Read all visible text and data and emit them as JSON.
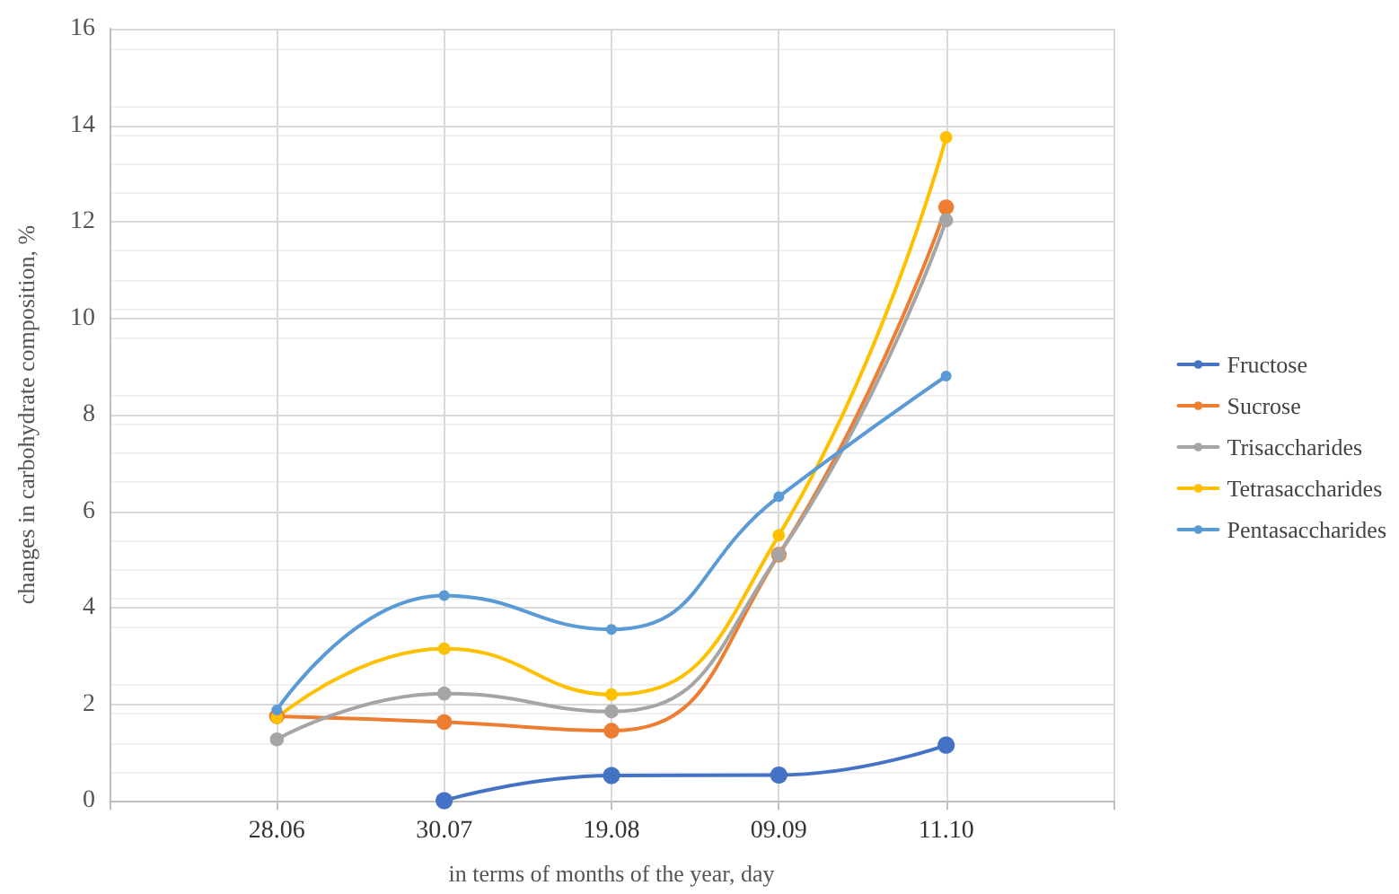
{
  "chart_data": {
    "type": "line",
    "xlabel": "in terms of months of the year, day",
    "ylabel": "changes in carbohydrate composition, %",
    "categories": [
      null,
      "28.06",
      "30.07",
      "19.08",
      "09.09",
      "11.10",
      null
    ],
    "series": [
      {
        "name": "Fructose",
        "color": "#4472c4",
        "values": [
          null,
          null,
          0,
          0.52,
          0.53,
          1.15,
          null
        ]
      },
      {
        "name": "Sucrose",
        "color": "#ed7d31",
        "values": [
          null,
          1.75,
          1.63,
          1.45,
          5.1,
          12.3,
          null
        ]
      },
      {
        "name": "Trisaccharides",
        "color": "#a5a5a5",
        "values": [
          null,
          1.27,
          2.22,
          1.85,
          5.1,
          12.03,
          null
        ]
      },
      {
        "name": "Tetrasaccharides",
        "color": "#ffc000",
        "values": [
          null,
          1.72,
          3.15,
          2.2,
          5.5,
          13.75,
          null
        ]
      },
      {
        "name": "Pentasaccharides",
        "color": "#5b9bd5",
        "values": [
          null,
          1.88,
          4.25,
          3.55,
          6.3,
          8.8,
          null
        ]
      }
    ],
    "ylim": [
      0,
      16
    ],
    "yticks": [
      0,
      2,
      4,
      6,
      8,
      10,
      12,
      14,
      16
    ],
    "grid": true,
    "legend": "right",
    "marker": "circle",
    "line_style": "solid"
  }
}
